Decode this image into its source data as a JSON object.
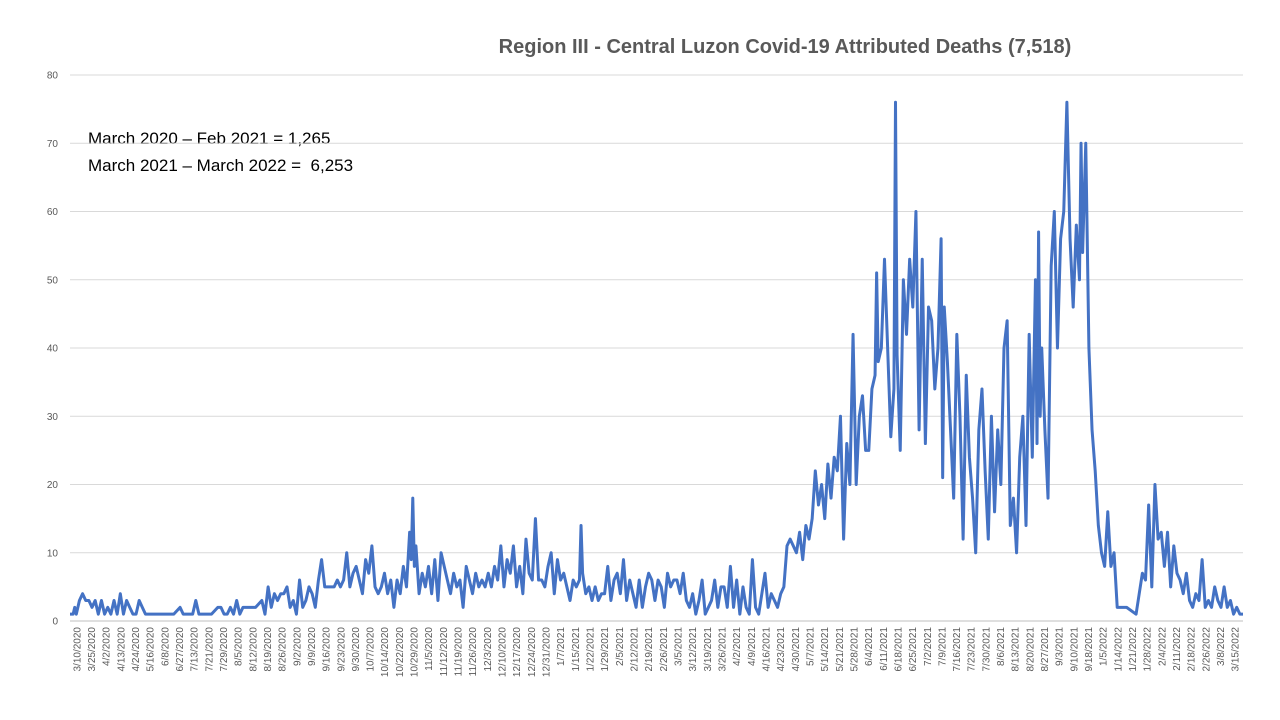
{
  "chart_data": {
    "type": "line",
    "title": "Region III - Central Luzon Covid-19 Attributed Deaths  (7,518)",
    "annotations": [
      "March 2020 – Feb 2021 = 1,265",
      "March 2021 – March 2022 =  6,253"
    ],
    "xlabel": "",
    "ylabel": "",
    "ylim": [
      0,
      80
    ],
    "y_ticks": [
      0,
      10,
      20,
      30,
      40,
      50,
      60,
      70,
      80
    ],
    "grid": true,
    "legend": "none",
    "series_color": "#4472C4",
    "x_tick_labels": [
      "3/10/2020",
      "3/25/2020",
      "4/2/2020",
      "4/13/2020",
      "4/24/2020",
      "5/16/2020",
      "6/8/2020",
      "6/27/2020",
      "7/13/2020",
      "7/21/2020",
      "7/29/2020",
      "8/5/2020",
      "8/12/2020",
      "8/19/2020",
      "8/26/2020",
      "9/2/2020",
      "9/9/2020",
      "9/16/2020",
      "9/23/2020",
      "9/30/2020",
      "10/7/2020",
      "10/14/2020",
      "10/22/2020",
      "10/29/2020",
      "11/5/2020",
      "11/12/2020",
      "11/19/2020",
      "11/26/2020",
      "12/3/2020",
      "12/10/2020",
      "12/17/2020",
      "12/24/2020",
      "12/31/2020",
      "1/7/2021",
      "1/15/2021",
      "1/22/2021",
      "1/29/2021",
      "2/5/2021",
      "2/12/2021",
      "2/19/2021",
      "2/26/2021",
      "3/5/2021",
      "3/12/2021",
      "3/19/2021",
      "3/26/2021",
      "4/2/2021",
      "4/9/2021",
      "4/16/2021",
      "4/23/2021",
      "4/30/2021",
      "5/7/2021",
      "5/14/2021",
      "5/21/2021",
      "5/28/2021",
      "6/4/2021",
      "6/11/2021",
      "6/18/2021",
      "6/25/2021",
      "7/2/2021",
      "7/9/2021",
      "7/16/2021",
      "7/23/2021",
      "7/30/2021",
      "8/6/2021",
      "8/13/2021",
      "8/20/2021",
      "8/27/2021",
      "9/3/2021",
      "9/10/2021",
      "9/18/2021",
      "1/5/2022",
      "1/14/2022",
      "1/21/2022",
      "1/28/2022",
      "2/4/2022",
      "2/11/2022",
      "2/18/2022",
      "2/26/2022",
      "3/8/2022",
      "3/15/2022"
    ],
    "keypoints": [
      [
        0,
        1
      ],
      [
        2,
        1
      ],
      [
        3,
        2
      ],
      [
        4,
        1
      ],
      [
        6,
        3
      ],
      [
        8,
        4
      ],
      [
        10,
        3
      ],
      [
        12,
        3
      ],
      [
        14,
        2
      ],
      [
        16,
        3
      ],
      [
        18,
        1
      ],
      [
        20,
        3
      ],
      [
        22,
        1
      ],
      [
        24,
        2
      ],
      [
        26,
        1
      ],
      [
        28,
        3
      ],
      [
        30,
        1
      ],
      [
        32,
        4
      ],
      [
        34,
        1
      ],
      [
        36,
        3
      ],
      [
        38,
        2
      ],
      [
        40,
        1
      ],
      [
        42,
        1
      ],
      [
        44,
        3
      ],
      [
        46,
        2
      ],
      [
        48,
        1
      ],
      [
        50,
        1
      ],
      [
        54,
        1
      ],
      [
        58,
        1
      ],
      [
        62,
        1
      ],
      [
        66,
        1
      ],
      [
        70,
        2
      ],
      [
        72,
        1
      ],
      [
        74,
        1
      ],
      [
        78,
        1
      ],
      [
        80,
        3
      ],
      [
        82,
        1
      ],
      [
        86,
        1
      ],
      [
        90,
        1
      ],
      [
        94,
        2
      ],
      [
        96,
        2
      ],
      [
        98,
        1
      ],
      [
        100,
        1
      ],
      [
        102,
        2
      ],
      [
        104,
        1
      ],
      [
        106,
        3
      ],
      [
        108,
        1
      ],
      [
        110,
        2
      ],
      [
        114,
        2
      ],
      [
        118,
        2
      ],
      [
        122,
        3
      ],
      [
        124,
        1
      ],
      [
        126,
        5
      ],
      [
        128,
        2
      ],
      [
        130,
        4
      ],
      [
        132,
        3
      ],
      [
        134,
        4
      ],
      [
        136,
        4
      ],
      [
        138,
        5
      ],
      [
        140,
        2
      ],
      [
        142,
        3
      ],
      [
        144,
        1
      ],
      [
        146,
        6
      ],
      [
        148,
        2
      ],
      [
        150,
        3
      ],
      [
        152,
        5
      ],
      [
        154,
        4
      ],
      [
        156,
        2
      ],
      [
        158,
        6
      ],
      [
        160,
        9
      ],
      [
        162,
        5
      ],
      [
        164,
        5
      ],
      [
        166,
        5
      ],
      [
        168,
        5
      ],
      [
        170,
        6
      ],
      [
        172,
        5
      ],
      [
        174,
        6
      ],
      [
        176,
        10
      ],
      [
        178,
        5
      ],
      [
        180,
        7
      ],
      [
        182,
        8
      ],
      [
        184,
        6
      ],
      [
        186,
        4
      ],
      [
        188,
        9
      ],
      [
        190,
        7
      ],
      [
        192,
        11
      ],
      [
        194,
        5
      ],
      [
        196,
        4
      ],
      [
        198,
        5
      ],
      [
        200,
        7
      ],
      [
        202,
        4
      ],
      [
        204,
        6
      ],
      [
        206,
        2
      ],
      [
        208,
        6
      ],
      [
        210,
        4
      ],
      [
        212,
        8
      ],
      [
        214,
        5
      ],
      [
        216,
        13
      ],
      [
        217,
        9
      ],
      [
        218,
        18
      ],
      [
        219,
        8
      ],
      [
        220,
        11
      ],
      [
        222,
        4
      ],
      [
        224,
        7
      ],
      [
        226,
        5
      ],
      [
        228,
        8
      ],
      [
        230,
        4
      ],
      [
        232,
        9
      ],
      [
        234,
        3
      ],
      [
        236,
        10
      ],
      [
        238,
        8
      ],
      [
        240,
        6
      ],
      [
        242,
        4
      ],
      [
        244,
        7
      ],
      [
        246,
        5
      ],
      [
        248,
        6
      ],
      [
        250,
        2
      ],
      [
        252,
        8
      ],
      [
        254,
        6
      ],
      [
        256,
        4
      ],
      [
        258,
        7
      ],
      [
        260,
        5
      ],
      [
        262,
        6
      ],
      [
        264,
        5
      ],
      [
        266,
        7
      ],
      [
        268,
        5
      ],
      [
        270,
        8
      ],
      [
        272,
        6
      ],
      [
        274,
        11
      ],
      [
        276,
        5
      ],
      [
        278,
        9
      ],
      [
        280,
        7
      ],
      [
        282,
        11
      ],
      [
        284,
        5
      ],
      [
        286,
        8
      ],
      [
        288,
        4
      ],
      [
        290,
        12
      ],
      [
        292,
        7
      ],
      [
        294,
        6
      ],
      [
        296,
        15
      ],
      [
        298,
        6
      ],
      [
        300,
        6
      ],
      [
        302,
        5
      ],
      [
        304,
        8
      ],
      [
        306,
        10
      ],
      [
        308,
        4
      ],
      [
        310,
        9
      ],
      [
        312,
        6
      ],
      [
        314,
        7
      ],
      [
        316,
        5
      ],
      [
        318,
        3
      ],
      [
        320,
        6
      ],
      [
        322,
        5
      ],
      [
        324,
        6
      ],
      [
        325,
        14
      ],
      [
        326,
        7
      ],
      [
        328,
        4
      ],
      [
        330,
        5
      ],
      [
        332,
        3
      ],
      [
        334,
        5
      ],
      [
        336,
        3
      ],
      [
        338,
        4
      ],
      [
        340,
        4
      ],
      [
        342,
        8
      ],
      [
        344,
        3
      ],
      [
        346,
        6
      ],
      [
        348,
        7
      ],
      [
        350,
        4
      ],
      [
        352,
        9
      ],
      [
        354,
        3
      ],
      [
        356,
        6
      ],
      [
        358,
        4
      ],
      [
        360,
        2
      ],
      [
        362,
        6
      ],
      [
        364,
        2
      ],
      [
        366,
        5
      ],
      [
        368,
        7
      ],
      [
        370,
        6
      ],
      [
        372,
        3
      ],
      [
        374,
        6
      ],
      [
        376,
        5
      ],
      [
        378,
        2
      ],
      [
        380,
        7
      ],
      [
        382,
        5
      ],
      [
        384,
        6
      ],
      [
        386,
        6
      ],
      [
        388,
        4
      ],
      [
        390,
        7
      ],
      [
        392,
        3
      ],
      [
        394,
        2
      ],
      [
        396,
        4
      ],
      [
        398,
        1
      ],
      [
        400,
        3
      ],
      [
        402,
        6
      ],
      [
        404,
        1
      ],
      [
        406,
        2
      ],
      [
        408,
        3
      ],
      [
        410,
        6
      ],
      [
        412,
        2
      ],
      [
        414,
        5
      ],
      [
        416,
        5
      ],
      [
        418,
        2
      ],
      [
        420,
        8
      ],
      [
        422,
        2
      ],
      [
        424,
        6
      ],
      [
        426,
        1
      ],
      [
        428,
        5
      ],
      [
        430,
        2
      ],
      [
        432,
        1
      ],
      [
        434,
        9
      ],
      [
        436,
        2
      ],
      [
        438,
        1
      ],
      [
        440,
        4
      ],
      [
        442,
        7
      ],
      [
        444,
        2
      ],
      [
        446,
        4
      ],
      [
        448,
        3
      ],
      [
        450,
        2
      ],
      [
        452,
        4
      ],
      [
        454,
        5
      ],
      [
        456,
        11
      ],
      [
        458,
        12
      ],
      [
        460,
        11
      ],
      [
        462,
        10
      ],
      [
        464,
        13
      ],
      [
        466,
        9
      ],
      [
        468,
        14
      ],
      [
        470,
        12
      ],
      [
        472,
        15
      ],
      [
        474,
        22
      ],
      [
        476,
        17
      ],
      [
        478,
        20
      ],
      [
        480,
        15
      ],
      [
        482,
        23
      ],
      [
        484,
        18
      ],
      [
        486,
        24
      ],
      [
        488,
        22
      ],
      [
        490,
        30
      ],
      [
        492,
        12
      ],
      [
        494,
        26
      ],
      [
        496,
        20
      ],
      [
        498,
        42
      ],
      [
        500,
        20
      ],
      [
        502,
        30
      ],
      [
        504,
        33
      ],
      [
        506,
        25
      ],
      [
        508,
        25
      ],
      [
        510,
        34
      ],
      [
        512,
        36
      ],
      [
        513,
        51
      ],
      [
        514,
        38
      ],
      [
        516,
        40
      ],
      [
        518,
        53
      ],
      [
        520,
        40
      ],
      [
        522,
        27
      ],
      [
        524,
        34
      ],
      [
        525,
        76
      ],
      [
        526,
        39
      ],
      [
        528,
        25
      ],
      [
        530,
        50
      ],
      [
        532,
        42
      ],
      [
        534,
        53
      ],
      [
        536,
        46
      ],
      [
        538,
        60
      ],
      [
        540,
        28
      ],
      [
        542,
        53
      ],
      [
        544,
        26
      ],
      [
        546,
        46
      ],
      [
        548,
        44
      ],
      [
        550,
        34
      ],
      [
        552,
        40
      ],
      [
        554,
        56
      ],
      [
        555,
        21
      ],
      [
        556,
        46
      ],
      [
        558,
        38
      ],
      [
        560,
        28
      ],
      [
        562,
        18
      ],
      [
        564,
        42
      ],
      [
        566,
        30
      ],
      [
        568,
        12
      ],
      [
        570,
        36
      ],
      [
        572,
        24
      ],
      [
        574,
        18
      ],
      [
        576,
        10
      ],
      [
        578,
        28
      ],
      [
        580,
        34
      ],
      [
        582,
        22
      ],
      [
        584,
        12
      ],
      [
        586,
        30
      ],
      [
        588,
        16
      ],
      [
        590,
        28
      ],
      [
        592,
        20
      ],
      [
        594,
        40
      ],
      [
        596,
        44
      ],
      [
        598,
        14
      ],
      [
        600,
        18
      ],
      [
        602,
        10
      ],
      [
        604,
        24
      ],
      [
        606,
        30
      ],
      [
        608,
        14
      ],
      [
        610,
        42
      ],
      [
        612,
        24
      ],
      [
        614,
        50
      ],
      [
        615,
        26
      ],
      [
        616,
        57
      ],
      [
        617,
        30
      ],
      [
        618,
        40
      ],
      [
        620,
        28
      ],
      [
        622,
        18
      ],
      [
        624,
        52
      ],
      [
        626,
        60
      ],
      [
        628,
        40
      ],
      [
        630,
        56
      ],
      [
        632,
        60
      ],
      [
        634,
        76
      ],
      [
        636,
        56
      ],
      [
        638,
        46
      ],
      [
        640,
        58
      ],
      [
        642,
        50
      ],
      [
        643,
        70
      ],
      [
        644,
        54
      ],
      [
        646,
        70
      ],
      [
        648,
        40
      ],
      [
        650,
        28
      ],
      [
        652,
        22
      ],
      [
        654,
        14
      ],
      [
        656,
        10
      ],
      [
        658,
        8
      ],
      [
        660,
        16
      ],
      [
        662,
        8
      ],
      [
        664,
        10
      ],
      [
        666,
        2
      ],
      [
        672,
        2
      ],
      [
        678,
        1
      ],
      [
        680,
        4
      ],
      [
        682,
        7
      ],
      [
        684,
        6
      ],
      [
        686,
        17
      ],
      [
        688,
        5
      ],
      [
        690,
        20
      ],
      [
        692,
        12
      ],
      [
        694,
        13
      ],
      [
        696,
        8
      ],
      [
        698,
        13
      ],
      [
        700,
        5
      ],
      [
        702,
        11
      ],
      [
        704,
        7
      ],
      [
        706,
        6
      ],
      [
        708,
        4
      ],
      [
        710,
        7
      ],
      [
        712,
        3
      ],
      [
        714,
        2
      ],
      [
        716,
        4
      ],
      [
        718,
        3
      ],
      [
        720,
        9
      ],
      [
        722,
        2
      ],
      [
        724,
        3
      ],
      [
        726,
        2
      ],
      [
        728,
        5
      ],
      [
        730,
        3
      ],
      [
        732,
        2
      ],
      [
        734,
        5
      ],
      [
        736,
        2
      ],
      [
        738,
        3
      ],
      [
        740,
        1
      ],
      [
        742,
        2
      ],
      [
        744,
        1
      ],
      [
        746,
        1
      ]
    ]
  }
}
